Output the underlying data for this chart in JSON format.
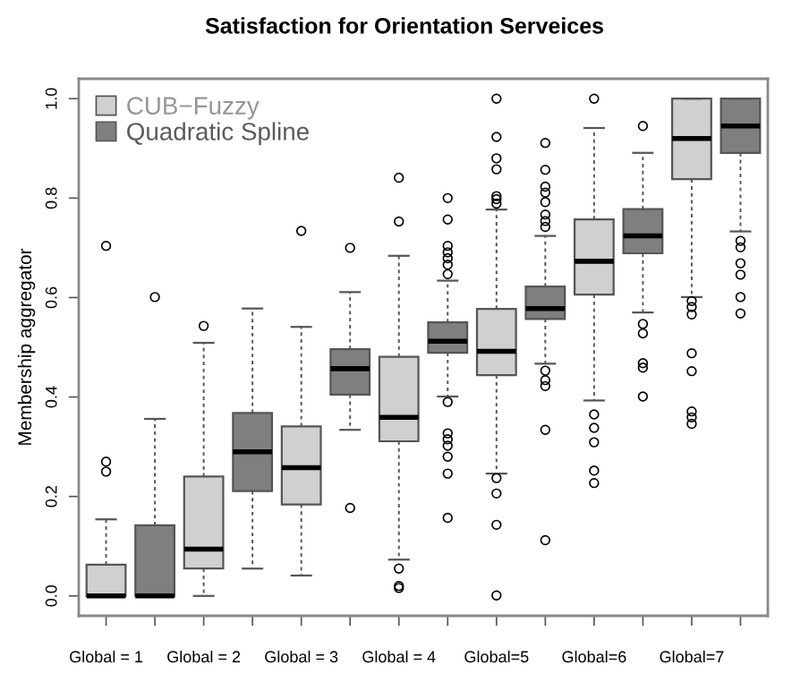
{
  "chart_data": {
    "type": "box",
    "title": "Satisfaction for Orientation Serveices",
    "ylabel": "Membership aggregator",
    "categories": [
      "Global = 1",
      null,
      "Global = 2",
      null,
      "Global = 3",
      null,
      "Global = 4",
      null,
      "Global=5",
      null,
      "Global=6",
      null,
      "Global=7",
      null
    ],
    "ylim": [
      -0.04,
      1.04
    ],
    "yticks": [
      {
        "value": 0,
        "label": "0.0"
      },
      0.2,
      0.4,
      0.6,
      0.8,
      {
        "value": 1,
        "label": "1.0"
      }
    ],
    "grid": false,
    "legend": "top left",
    "series": [
      {
        "name": "CUB−Fuzzy",
        "color": "#d0d0d0",
        "boxes": [
          {
            "low": 0,
            "q1": 0,
            "median": 0,
            "q3": 0.063,
            "high": 0.154,
            "outliers": [
              0.704,
              0.25,
              0.27
            ]
          },
          null,
          {
            "low": 0,
            "q1": 0.055,
            "median": 0.094,
            "q3": 0.24,
            "high": 0.509,
            "outliers": [
              0.543
            ]
          },
          null,
          {
            "low": 0.041,
            "q1": 0.184,
            "median": 0.258,
            "q3": 0.341,
            "high": 0.541,
            "outliers": [
              0.734
            ]
          },
          null,
          {
            "low": 0.073,
            "q1": 0.311,
            "median": 0.359,
            "q3": 0.481,
            "high": 0.684,
            "outliers": [
              0.841,
              0.753,
              0.055,
              0.02,
              0.016
            ]
          },
          null,
          {
            "low": 0.246,
            "q1": 0.444,
            "median": 0.492,
            "q3": 0.577,
            "high": 0.777,
            "outliers": [
              1.0,
              0.923,
              0.88,
              0.858,
              0.804,
              0.798,
              0.789,
              0.237,
              0.206,
              0.143,
              0.001
            ]
          },
          null,
          {
            "low": 0.393,
            "q1": 0.606,
            "median": 0.673,
            "q3": 0.757,
            "high": 0.941,
            "outliers": [
              1.0,
              0.365,
              0.338,
              0.309,
              0.252,
              0.227
            ]
          },
          null,
          {
            "low": 0.601,
            "q1": 0.838,
            "median": 0.92,
            "q3": 1.0,
            "high": 1.0,
            "outliers": [
              0.593,
              0.581,
              0.566,
              0.488,
              0.452,
              0.371,
              0.359,
              0.346
            ]
          },
          null
        ]
      },
      {
        "name": "Quadratic Spline",
        "color": "#7f7f7f",
        "boxes": [
          null,
          {
            "low": 0,
            "q1": 0,
            "median": 0,
            "q3": 0.142,
            "high": 0.356,
            "outliers": [
              0.601
            ]
          },
          null,
          {
            "low": 0.055,
            "q1": 0.211,
            "median": 0.29,
            "q3": 0.368,
            "high": 0.578
          },
          null,
          {
            "low": 0.334,
            "q1": 0.405,
            "median": 0.457,
            "q3": 0.496,
            "high": 0.611,
            "outliers": [
              0.7,
              0.177
            ]
          },
          null,
          {
            "low": 0.401,
            "q1": 0.489,
            "median": 0.512,
            "q3": 0.55,
            "high": 0.634,
            "outliers": [
              0.8,
              0.757,
              0.704,
              0.691,
              0.679,
              0.666,
              0.647,
              0.39,
              0.327,
              0.315,
              0.302,
              0.28,
              0.246,
              0.157
            ]
          },
          null,
          {
            "low": 0.467,
            "q1": 0.557,
            "median": 0.578,
            "q3": 0.622,
            "high": 0.724,
            "outliers": [
              0.911,
              0.857,
              0.823,
              0.811,
              0.792,
              0.767,
              0.754,
              0.742,
              0.453,
              0.434,
              0.422,
              0.334,
              0.112
            ]
          },
          null,
          {
            "low": 0.57,
            "q1": 0.689,
            "median": 0.724,
            "q3": 0.778,
            "high": 0.891,
            "outliers": [
              0.945,
              0.547,
              0.528,
              0.468,
              0.459,
              0.401
            ]
          },
          null,
          {
            "low": 0.733,
            "q1": 0.891,
            "median": 0.945,
            "q3": 1.0,
            "high": 1.0,
            "outliers": [
              0.714,
              0.701,
              0.669,
              0.646,
              0.601,
              0.568
            ]
          }
        ]
      }
    ]
  }
}
